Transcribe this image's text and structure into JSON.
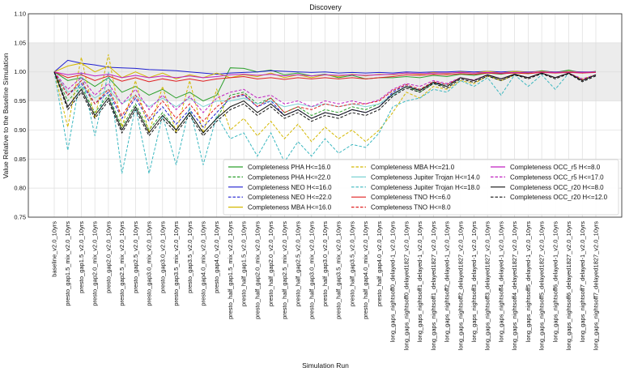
{
  "chart_data": {
    "type": "line",
    "title": "Discovery",
    "xlabel": "Simulation Run",
    "ylabel": "Value Relative to the Baseline Simulation",
    "ylim": [
      0.75,
      1.1
    ],
    "yticks": [
      "0.75",
      "0.80",
      "0.85",
      "0.90",
      "0.95",
      "1.00",
      "1.05",
      "1.10"
    ],
    "band": [
      0.95,
      1.05
    ],
    "grid": true,
    "legend_position": "lower-right",
    "categories": [
      "baseline_v2.0_10yrs",
      "presto_gap1.5_mix_v2.0_10yrs",
      "presto_gap1.5_v2.0_10yrs",
      "presto_gap2.0_mix_v2.0_10yrs",
      "presto_gap2.0_v2.0_10yrs",
      "presto_gap2.5_mix_v2.0_10yrs",
      "presto_gap2.5_v2.0_10yrs",
      "presto_gap3.0_mix_v2.0_10yrs",
      "presto_gap3.0_v2.0_10yrs",
      "presto_gap3.5_mix_v2.0_10yrs",
      "presto_gap3.5_v2.0_10yrs",
      "presto_gap4.0_mix_v2.0_10yrs",
      "presto_gap4.0_v2.0_10yrs",
      "presto_half_gap1.5_mix_v2.0_10yrs",
      "presto_half_gap1.5_v2.0_10yrs",
      "presto_half_gap2.0_mix_v2.0_10yrs",
      "presto_half_gap2.0_v2.0_10yrs",
      "presto_half_gap2.5_mix_v2.0_10yrs",
      "presto_half_gap2.5_v2.0_10yrs",
      "presto_half_gap3.0_mix_v2.0_10yrs",
      "presto_half_gap3.0_v2.0_10yrs",
      "presto_half_gap3.5_mix_v2.0_10yrs",
      "presto_half_gap3.5_v2.0_10yrs",
      "presto_half_gap4.0_mix_v2.0_10yrs",
      "presto_half_gap4.0_v2.0_10yrs",
      "long_gaps_nightsoff0_delayed-1_v2.0_10yrs",
      "long_gaps_nightsoff0_delayed1827_v2.0_10yrs",
      "long_gaps_nightsoff1_delayed-1_v2.0_10yrs",
      "long_gaps_nightsoff1_delayed1827_v2.0_10yrs",
      "long_gaps_nightsoff2_delayed-1_v2.0_10yrs",
      "long_gaps_nightsoff2_delayed1827_v2.0_10yrs",
      "long_gaps_nightsoff3_delayed-1_v2.0_10yrs",
      "long_gaps_nightsoff3_delayed1827_v2.0_10yrs",
      "long_gaps_nightsoff4_delayed-1_v2.0_10yrs",
      "long_gaps_nightsoff4_delayed1827_v2.0_10yrs",
      "long_gaps_nightsoff5_delayed-1_v2.0_10yrs",
      "long_gaps_nightsoff5_delayed1827_v2.0_10yrs",
      "long_gaps_nightsoff6_delayed-1_v2.0_10yrs",
      "long_gaps_nightsoff6_delayed1827_v2.0_10yrs",
      "long_gaps_nightsoff7_delayed-1_v2.0_10yrs",
      "long_gaps_nightsoff7_delayed1827_v2.0_10yrs"
    ],
    "series": [
      {
        "name": "Completeness PHA H<=16.0",
        "color": "#2ca02c",
        "dash": "solid",
        "values": [
          1.0,
          0.985,
          0.99,
          0.975,
          0.99,
          0.965,
          0.975,
          0.96,
          0.97,
          0.955,
          0.965,
          0.95,
          0.96,
          1.007,
          1.006,
          1.0,
          1.003,
          0.995,
          0.998,
          0.993,
          0.996,
          0.99,
          0.994,
          0.988,
          0.99,
          0.99,
          0.992,
          0.99,
          0.994,
          0.992,
          0.996,
          0.994,
          0.998,
          0.996,
          1.0,
          0.998,
          1.002,
          0.999,
          1.003,
          0.998,
          1.001
        ]
      },
      {
        "name": "Completeness PHA H<=22.0",
        "color": "#2ca02c",
        "dash": "dashed",
        "values": [
          1.0,
          0.95,
          0.975,
          0.93,
          0.96,
          0.905,
          0.945,
          0.9,
          0.93,
          0.9,
          0.93,
          0.895,
          0.92,
          0.96,
          0.965,
          0.945,
          0.955,
          0.93,
          0.94,
          0.925,
          0.935,
          0.93,
          0.94,
          0.935,
          0.945,
          0.96,
          0.975,
          0.965,
          0.98,
          0.975,
          0.99,
          0.985,
          0.995,
          0.985,
          0.995,
          0.99,
          0.998,
          0.99,
          0.998,
          0.985,
          0.995
        ]
      },
      {
        "name": "Completeness NEO H<=16.0",
        "color": "#1f1fd0",
        "dash": "solid",
        "values": [
          1.0,
          1.02,
          1.015,
          1.012,
          1.008,
          1.007,
          1.006,
          1.004,
          1.003,
          1.002,
          1.0,
          0.998,
          0.996,
          0.998,
          0.999,
          1.0,
          1.002,
          1.001,
          1.0,
          0.999,
          1.0,
          0.998,
          0.999,
          0.998,
          0.999,
          0.998,
          1.0,
          0.999,
          1.0,
          1.0,
          1.001,
          1.0,
          1.001,
          1.0,
          1.001,
          1.0,
          1.001,
          1.0,
          1.001,
          1.0,
          1.0
        ]
      },
      {
        "name": "Completeness NEO H<=22.0",
        "color": "#1f1fd0",
        "dash": "dashed",
        "values": [
          1.0,
          0.96,
          0.98,
          0.945,
          0.965,
          0.92,
          0.955,
          0.915,
          0.94,
          0.91,
          0.935,
          0.905,
          0.93,
          0.955,
          0.96,
          0.94,
          0.95,
          0.925,
          0.935,
          0.92,
          0.93,
          0.925,
          0.935,
          0.93,
          0.94,
          0.965,
          0.978,
          0.968,
          0.982,
          0.978,
          0.99,
          0.985,
          0.995,
          0.988,
          0.996,
          0.99,
          0.998,
          0.99,
          0.998,
          0.985,
          0.995
        ]
      },
      {
        "name": "Completeness MBA H<=16.0",
        "color": "#d4b800",
        "dash": "solid",
        "values": [
          1.0,
          1.01,
          1.015,
          1.0,
          1.01,
          0.99,
          1.0,
          0.99,
          0.998,
          0.988,
          0.995,
          0.99,
          0.998,
          0.99,
          0.995,
          0.992,
          0.998,
          0.99,
          0.995,
          0.99,
          0.995,
          0.992,
          0.996,
          0.993,
          0.996,
          0.995,
          0.998,
          0.996,
          0.999,
          0.997,
          1.0,
          0.998,
          1.001,
          0.998,
          1.001,
          0.999,
          1.001,
          0.999,
          1.001,
          0.999,
          1.0
        ]
      },
      {
        "name": "Completeness MBA H<=21.0",
        "color": "#d4b800",
        "dash": "dashed",
        "values": [
          1.0,
          0.905,
          1.025,
          0.92,
          1.03,
          0.905,
          0.985,
          0.895,
          0.975,
          0.895,
          0.985,
          0.895,
          0.97,
          0.9,
          0.92,
          0.89,
          0.915,
          0.885,
          0.91,
          0.88,
          0.905,
          0.885,
          0.9,
          0.88,
          0.9,
          0.93,
          0.965,
          0.955,
          0.975,
          0.97,
          0.985,
          0.98,
          0.993,
          0.985,
          0.995,
          0.99,
          0.998,
          0.99,
          0.998,
          0.988,
          0.995
        ]
      },
      {
        "name": "Completeness Jupiter Trojan H<=14.0",
        "color": "#7dd3d3",
        "dash": "solid",
        "values": [
          1.0,
          0.965,
          0.975,
          0.955,
          0.97,
          0.945,
          0.96,
          0.94,
          0.955,
          0.94,
          0.955,
          0.94,
          0.95,
          0.95,
          0.955,
          0.945,
          0.95,
          0.94,
          0.945,
          0.94,
          0.945,
          0.94,
          0.945,
          0.94,
          0.945,
          0.96,
          0.975,
          0.97,
          0.98,
          0.978,
          0.99,
          0.985,
          0.995,
          0.988,
          0.996,
          0.99,
          0.998,
          0.99,
          0.998,
          0.985,
          0.995
        ]
      },
      {
        "name": "Completeness Jupiter Trojan H<=18.0",
        "color": "#3cb8c0",
        "dash": "dashed",
        "values": [
          1.0,
          0.865,
          1.0,
          0.89,
          1.0,
          0.825,
          0.94,
          0.825,
          0.925,
          0.84,
          0.94,
          0.84,
          0.925,
          0.885,
          0.895,
          0.855,
          0.895,
          0.845,
          0.88,
          0.855,
          0.885,
          0.86,
          0.875,
          0.87,
          0.895,
          0.94,
          0.95,
          0.955,
          0.97,
          0.965,
          0.985,
          0.975,
          0.99,
          0.96,
          0.995,
          0.975,
          0.995,
          0.97,
          0.998,
          0.985,
          0.995
        ]
      },
      {
        "name": "Completeness TNO H<=6.0",
        "color": "#e02020",
        "dash": "solid",
        "values": [
          1.0,
          0.99,
          0.995,
          0.985,
          0.993,
          0.984,
          0.99,
          0.983,
          0.988,
          0.984,
          0.988,
          0.984,
          0.988,
          0.99,
          0.992,
          0.988,
          0.99,
          0.987,
          0.99,
          0.988,
          0.99,
          0.988,
          0.99,
          0.988,
          0.99,
          0.992,
          0.995,
          0.994,
          0.996,
          0.995,
          0.997,
          0.996,
          0.998,
          0.997,
          0.998,
          0.997,
          0.999,
          0.998,
          0.999,
          0.998,
          0.999
        ]
      },
      {
        "name": "Completeness TNO H<=8.0",
        "color": "#e02020",
        "dash": "dashed",
        "values": [
          1.0,
          0.96,
          0.985,
          0.945,
          0.97,
          0.925,
          0.96,
          0.92,
          0.95,
          0.92,
          0.945,
          0.915,
          0.94,
          0.955,
          0.962,
          0.94,
          0.955,
          0.93,
          0.94,
          0.935,
          0.945,
          0.94,
          0.945,
          0.945,
          0.95,
          0.968,
          0.978,
          0.97,
          0.983,
          0.978,
          0.99,
          0.985,
          0.995,
          0.988,
          0.996,
          0.99,
          0.998,
          0.99,
          0.998,
          0.986,
          0.995
        ]
      },
      {
        "name": "Completeness OCC_r5 H<=8.0",
        "color": "#c020c0",
        "dash": "solid",
        "values": [
          1.0,
          0.995,
          0.998,
          0.993,
          0.996,
          0.99,
          0.994,
          0.99,
          0.993,
          0.99,
          0.993,
          0.99,
          0.992,
          0.995,
          0.996,
          0.994,
          0.996,
          0.993,
          0.995,
          0.993,
          0.995,
          0.994,
          0.995,
          0.994,
          0.995,
          0.996,
          0.998,
          0.997,
          0.998,
          0.998,
          0.999,
          0.998,
          0.999,
          0.998,
          0.999,
          0.999,
          1.0,
          0.999,
          1.0,
          0.999,
          1.0
        ]
      },
      {
        "name": "Completeness OCC_r5 H<=17.0",
        "color": "#c020c0",
        "dash": "dashed",
        "values": [
          1.0,
          0.97,
          0.99,
          0.96,
          0.98,
          0.945,
          0.97,
          0.935,
          0.96,
          0.935,
          0.958,
          0.93,
          0.955,
          0.965,
          0.97,
          0.955,
          0.96,
          0.945,
          0.95,
          0.94,
          0.95,
          0.945,
          0.95,
          0.945,
          0.952,
          0.97,
          0.98,
          0.975,
          0.985,
          0.98,
          0.99,
          0.986,
          0.995,
          0.988,
          0.996,
          0.99,
          0.998,
          0.99,
          0.998,
          0.988,
          0.995
        ]
      },
      {
        "name": "Completeness OCC_r20 H<=8.0",
        "color": "#111111",
        "dash": "solid",
        "values": [
          1.0,
          0.94,
          0.97,
          0.925,
          0.955,
          0.9,
          0.94,
          0.895,
          0.925,
          0.9,
          0.93,
          0.895,
          0.92,
          0.94,
          0.95,
          0.93,
          0.945,
          0.925,
          0.935,
          0.92,
          0.93,
          0.925,
          0.935,
          0.93,
          0.94,
          0.962,
          0.975,
          0.968,
          0.982,
          0.975,
          0.99,
          0.985,
          0.995,
          0.988,
          0.996,
          0.99,
          0.998,
          0.99,
          0.998,
          0.985,
          0.995
        ]
      },
      {
        "name": "Completeness OCC_r20 H<=12.0",
        "color": "#111111",
        "dash": "dashed",
        "values": [
          1.0,
          0.935,
          0.965,
          0.92,
          0.95,
          0.895,
          0.935,
          0.89,
          0.92,
          0.895,
          0.925,
          0.89,
          0.915,
          0.935,
          0.945,
          0.925,
          0.94,
          0.92,
          0.93,
          0.915,
          0.925,
          0.92,
          0.93,
          0.925,
          0.935,
          0.958,
          0.972,
          0.965,
          0.98,
          0.972,
          0.988,
          0.982,
          0.993,
          0.985,
          0.995,
          0.988,
          0.997,
          0.988,
          0.997,
          0.983,
          0.993
        ]
      }
    ]
  }
}
